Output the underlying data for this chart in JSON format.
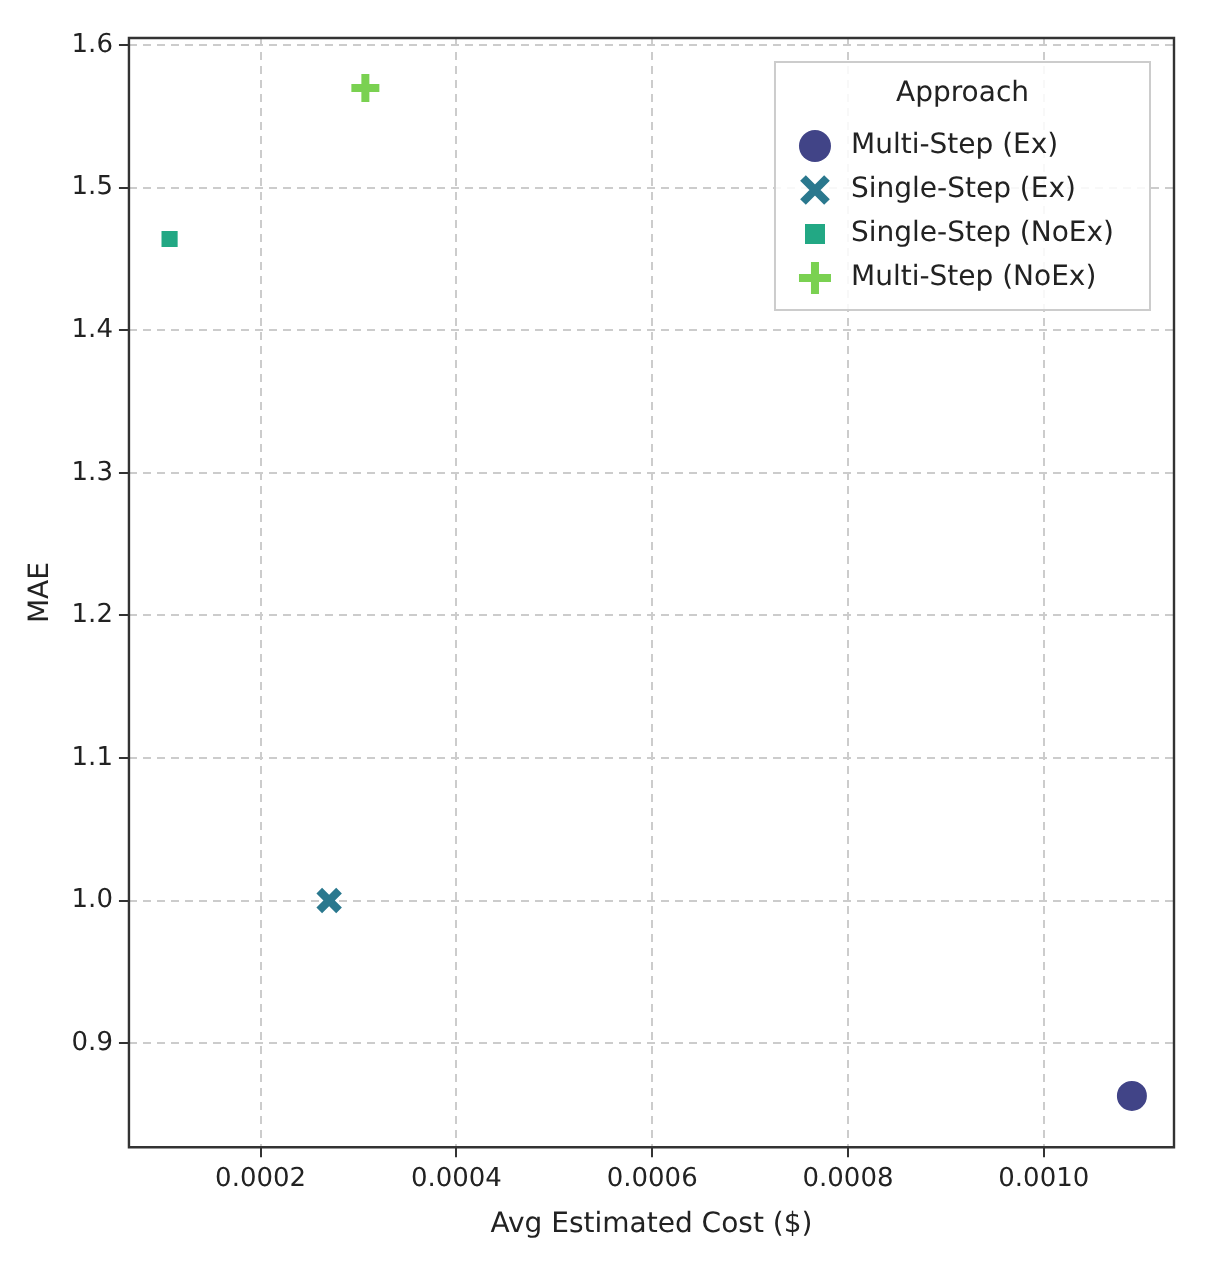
{
  "chart_data": {
    "type": "scatter",
    "xlabel": "Avg Estimated Cost ($)",
    "ylabel": "MAE",
    "legend_title": "Approach",
    "legend": "top right",
    "grid": true,
    "line_style": "dashed",
    "xlim": [
      6.55e-05,
      0.001133
    ],
    "xticks": [
      {
        "value": 0.0002,
        "label": "0.0002"
      },
      {
        "value": 0.0004,
        "label": "0.0004"
      },
      {
        "value": 0.0006,
        "label": "0.0006"
      },
      {
        "value": 0.0008,
        "label": "0.0008"
      },
      {
        "value": 0.001,
        "label": "0.0010"
      }
    ],
    "ylim": [
      0.827,
      1.605
    ],
    "yticks": [
      {
        "value": 0.9,
        "label": "0.9"
      },
      {
        "value": 1,
        "label": "1.0"
      },
      {
        "value": 1.1,
        "label": "1.1"
      },
      {
        "value": 1.2,
        "label": "1.2"
      },
      {
        "value": 1.3,
        "label": "1.3"
      },
      {
        "value": 1.4,
        "label": "1.4"
      },
      {
        "value": 1.5,
        "label": "1.5"
      },
      {
        "value": 1.6,
        "label": "1.6"
      }
    ],
    "series": [
      {
        "name": "Multi-Step (Ex)",
        "color": "#414487",
        "marker": "circle",
        "x": [
          0.00109
        ],
        "values": [
          0.863
        ]
      },
      {
        "name": "Single-Step (Ex)",
        "color": "#2a788e",
        "marker": "cross",
        "x": [
          0.00027
        ],
        "values": [
          1.0
        ]
      },
      {
        "name": "Single-Step (NoEx)",
        "color": "#22a884",
        "marker": "square",
        "x": [
          0.000107
        ],
        "values": [
          1.464
        ]
      },
      {
        "name": "Multi-Step (NoEx)",
        "color": "#7ad151",
        "marker": "plus",
        "x": [
          0.000307
        ],
        "values": [
          1.57
        ]
      }
    ]
  }
}
